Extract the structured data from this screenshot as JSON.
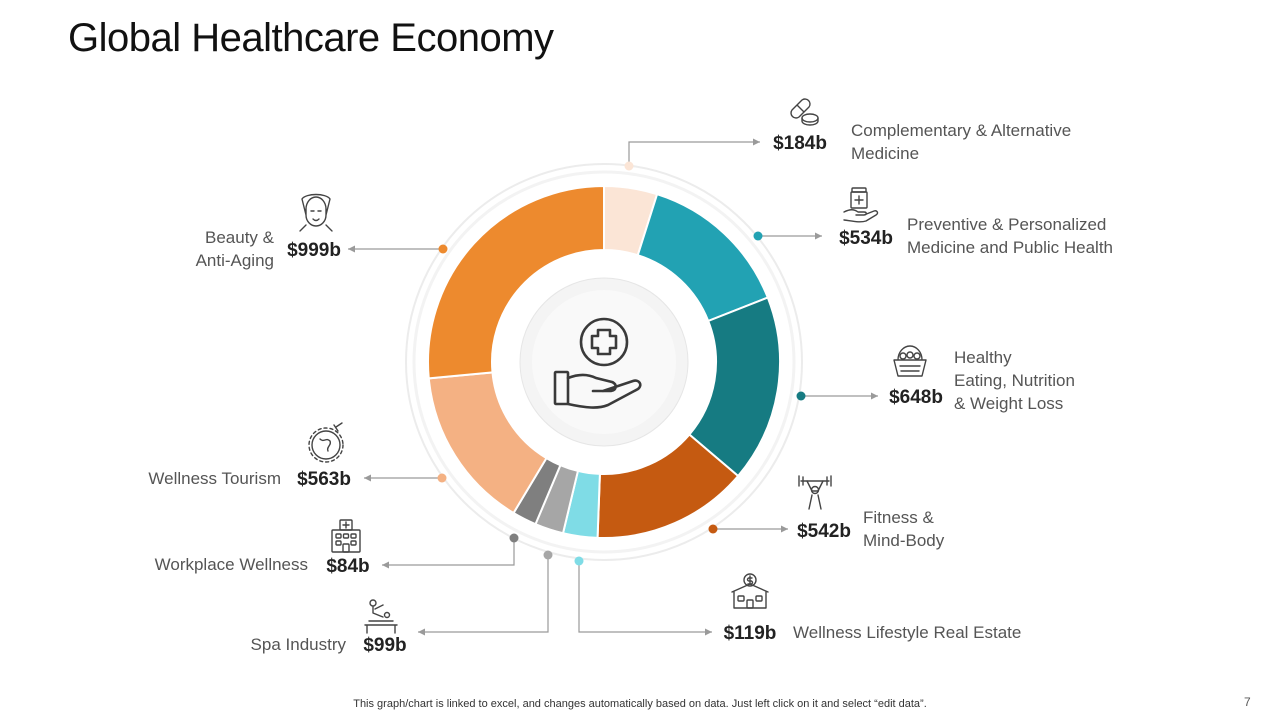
{
  "slide": {
    "title": "Global Healthcare Economy",
    "footer": "This graph/chart is linked to excel, and changes automatically based on data. Just left click on it and select “edit data”.",
    "page_number": "7"
  },
  "chart_data": {
    "type": "pie",
    "title": "",
    "categories": [
      "Complementary & Alternative Medicine",
      "Preventive & Personalized Medicine and Public Health",
      "Healthy Eating, Nutrition & Weight Loss",
      "Fitness & Mind-Body",
      "Wellness Lifestyle Real Estate",
      "Spa Industry",
      "Workplace Wellness",
      "Wellness Tourism",
      "Beauty & Anti-Aging"
    ],
    "values": [
      184,
      534,
      648,
      542,
      119,
      99,
      84,
      563,
      999
    ],
    "value_labels": [
      "$184b",
      "$534b",
      "$648b",
      "$542b",
      "$119b",
      "$99b",
      "$84b",
      "$563b",
      "$999b"
    ],
    "label_lines": [
      [
        "Complementary & Alternative",
        "Medicine"
      ],
      [
        "Preventive & Personalized",
        "Medicine and Public Health"
      ],
      [
        "Healthy",
        "Eating, Nutrition",
        "& Weight Loss"
      ],
      [
        "Fitness &",
        "Mind-Body"
      ],
      [
        "Wellness Lifestyle Real Estate"
      ],
      [
        "Spa Industry"
      ],
      [
        "Workplace Wellness"
      ],
      [
        "Wellness Tourism"
      ],
      [
        "Beauty &",
        "Anti-Aging"
      ]
    ],
    "icons": [
      "pills-icon",
      "medicine-bottle-hand-icon",
      "food-basket-icon",
      "weightlifter-icon",
      "house-dollar-icon",
      "spa-massage-icon",
      "office-building-icon",
      "globe-plane-icon",
      "woman-face-icon"
    ],
    "colors": [
      "#FBE5D6",
      "#22A2B3",
      "#167B82",
      "#C55A11",
      "#7FDCE6",
      "#A6A6A6",
      "#7F7F7F",
      "#F4B183",
      "#ED8A2E"
    ],
    "center_icon": "hand-medical-cross-icon",
    "legend": "none"
  }
}
